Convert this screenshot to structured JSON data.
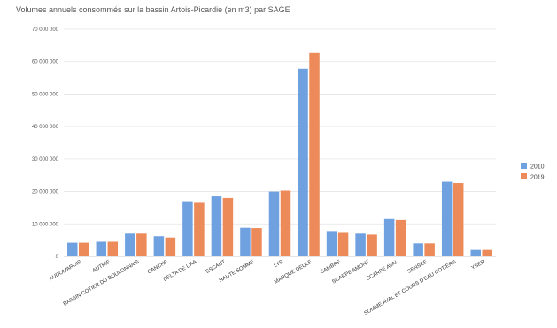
{
  "chart_data": {
    "type": "bar",
    "title": "Volumes annuels consommés sur la bassin Artois-Picardie (en m3) par SAGE",
    "xlabel": "",
    "ylabel": "",
    "ylim": [
      0,
      70000000
    ],
    "yticks": [
      0,
      10000000,
      20000000,
      30000000,
      40000000,
      50000000,
      60000000,
      70000000
    ],
    "ytick_labels": [
      "0",
      "10 000 000",
      "20 000 000",
      "30 000 000",
      "40 000 000",
      "50 000 000",
      "60 000 000",
      "70 000 000"
    ],
    "grid": true,
    "legend_position": "right",
    "categories": [
      "AUDOMAROIS",
      "AUTHIE",
      "BASSIN COTIER DU BOULONNAIS",
      "CANCHE",
      "DELTA DE L'AA",
      "ESCAUT",
      "HAUTE SOMME",
      "LYS",
      "MARQUE DEULE",
      "SAMBRE",
      "SCARPE AMONT",
      "SCARPE AVAL",
      "SENSEE",
      "SOMME AVAL ET COURS D'EAU COTIERS",
      "YSER"
    ],
    "series": [
      {
        "name": "2010",
        "color": "#6fa0e0",
        "values": [
          4200000,
          4500000,
          7000000,
          6200000,
          17000000,
          18500000,
          8800000,
          20000000,
          57800000,
          7800000,
          7000000,
          11500000,
          4000000,
          23000000,
          2000000
        ]
      },
      {
        "name": "2019",
        "color": "#ec8a5a",
        "values": [
          4200000,
          4500000,
          7000000,
          5800000,
          16500000,
          18000000,
          8700000,
          20300000,
          62700000,
          7500000,
          6700000,
          11200000,
          4000000,
          22600000,
          2000000
        ]
      }
    ]
  }
}
